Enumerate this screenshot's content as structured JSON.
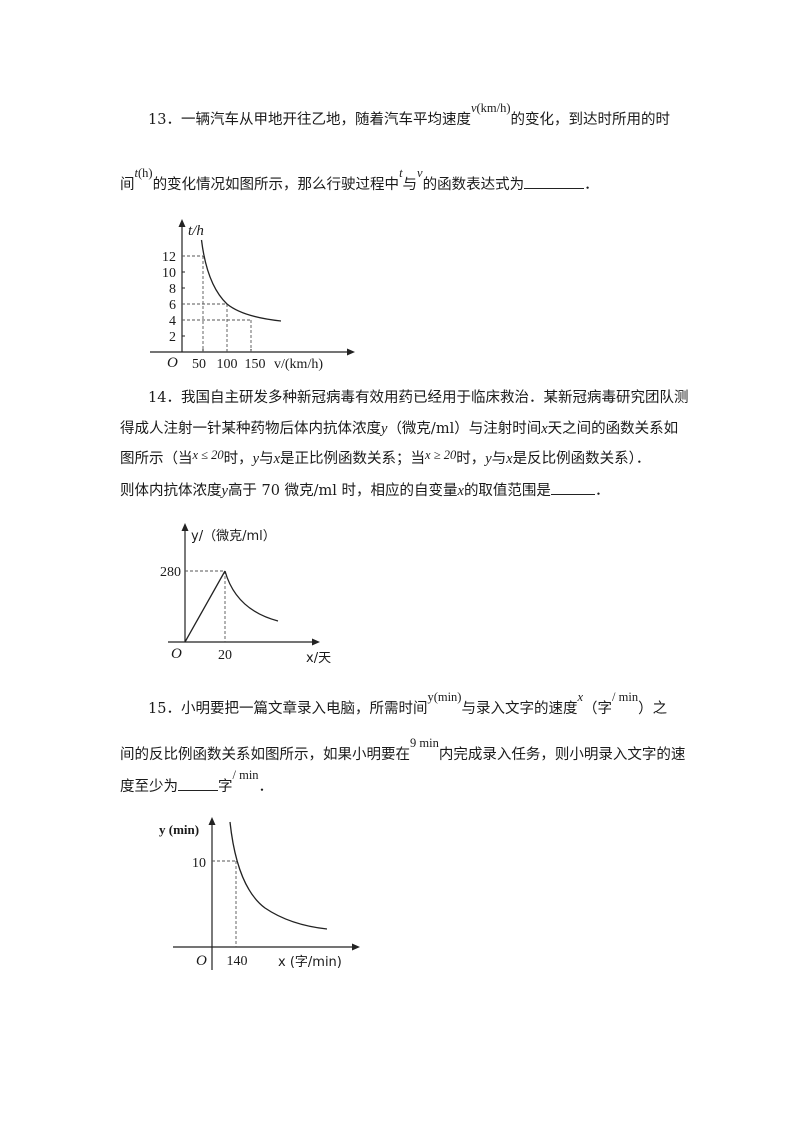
{
  "q13": {
    "num": "13．",
    "t1": "一辆汽车从甲地开往乙地，随着汽车平均速度",
    "v_var": "v",
    "v_unit": "(km/h)",
    "t2": "的变化，到达时所用的时",
    "t3": "间",
    "t_var": "t",
    "t_unit": "(h)",
    "t4": "的变化情况如图所示，那么行驶过程中",
    "t_var2": "t",
    "t5": "与",
    "v_var2": "v",
    "t6": "的函数表达式为",
    "t7": "．",
    "chart": {
      "y_axis_label": "t/h",
      "x_axis_label": "v/(km/h)",
      "origin": "O",
      "y_ticks": [
        "12",
        "10",
        "8",
        "6",
        "4",
        "2"
      ],
      "x_ticks": [
        "50",
        "100",
        "150"
      ]
    }
  },
  "q14": {
    "num": "14．",
    "l1": "我国自主研发多种新冠病毒有效用药已经用于临床救治．某新冠病毒研究团队测",
    "l2a": "得成人注射一针某种药物后体内抗体浓度",
    "y": "y",
    "l2b": "（微克/ml）与注射时间",
    "x": "x",
    "l2c": "天之间的函数关系如",
    "l3a": "图所示（当",
    "cond1": "x ≤ 20",
    "l3b": "时，",
    "l3c": "与",
    "l3d": "是正比例函数关系；当",
    "cond2": "x ≥ 20",
    "l3e": "时，",
    "l3f": "与",
    "l3g": "是反比例函数关系）．",
    "l4a": "则体内抗体浓度",
    "l4b": "高于 70 微克/ml 时，相应的自变量",
    "l4c": "的取值范围是",
    "l4d": "．",
    "chart": {
      "y_axis_label": "y/（微克/ml）",
      "x_axis_label": "x/天",
      "origin": "O",
      "y_tick": "280",
      "x_tick": "20"
    }
  },
  "q15": {
    "num": "15．",
    "l1a": "小明要把一篇文章录入电脑，所需时间",
    "y_expr": "y(min)",
    "l1b": "与录入文字的速度",
    "x": "x",
    "l1c": "（字",
    "unit": "/ min",
    "l1d": "）之",
    "l2a": "间的反比例函数关系如图所示，如果小明要在",
    "nine": "9 min",
    "l2b": "内完成录入任务，则小明录入文字的速",
    "l3a": "度至少为",
    "l3b": "字",
    "unit2": "/ min",
    "l3c": "．",
    "chart": {
      "y_axis_label": "y (min)",
      "x_axis_label": "x (字/min)",
      "origin": "O",
      "y_tick": "10",
      "x_tick": "140"
    }
  }
}
